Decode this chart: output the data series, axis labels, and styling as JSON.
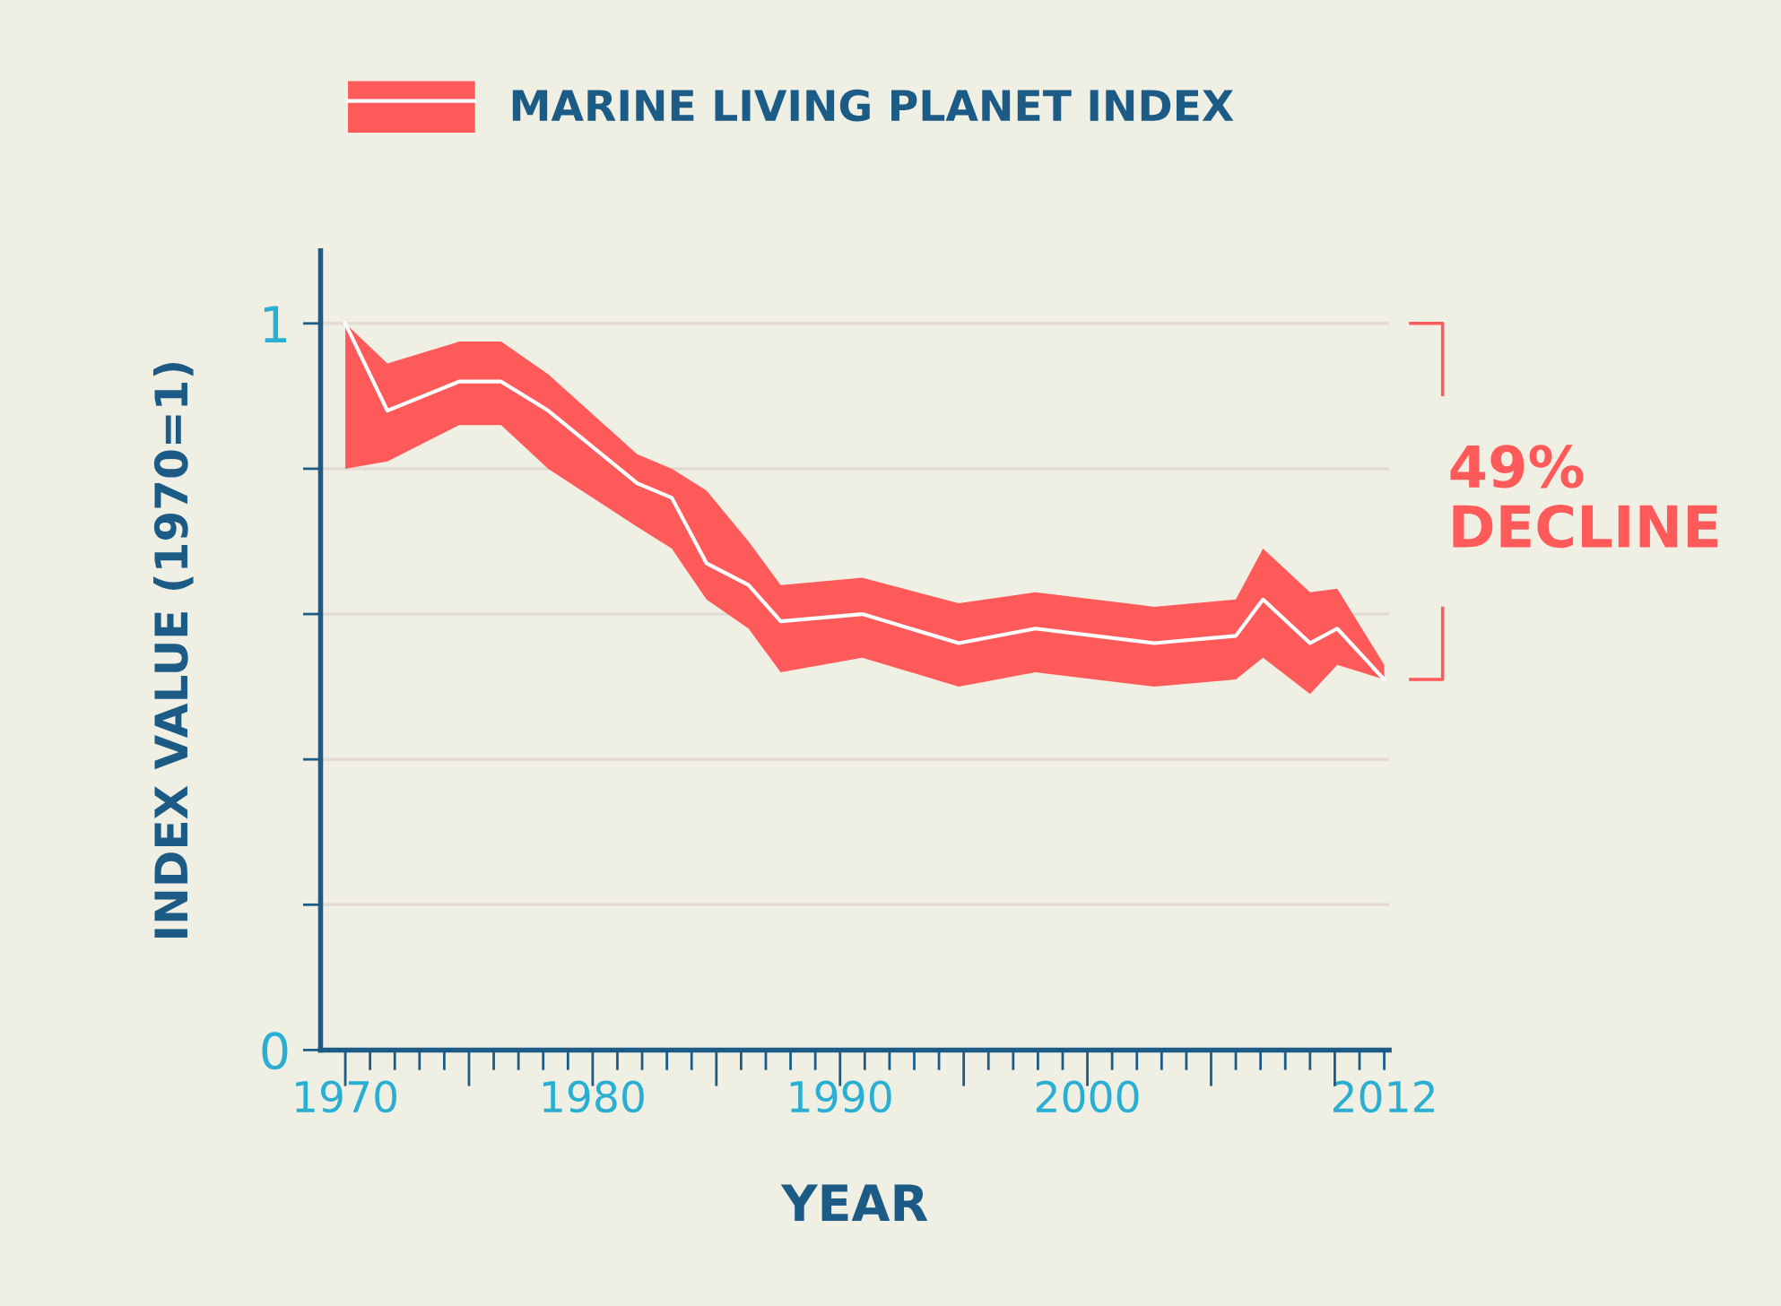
{
  "chart_data": {
    "type": "line",
    "xlabel": "YEAR",
    "ylabel": "INDEX VALUE (1970=1)",
    "series": [
      {
        "name": "MARINE LIVING PLANET INDEX",
        "color": "#ffffff",
        "x": [
          1970,
          1971.7,
          1974.6,
          1976.3,
          1978.2,
          1981.8,
          1983.2,
          1984.6,
          1986.3,
          1987.6,
          1990.9,
          1994.8,
          1997.9,
          2002.7,
          2006.0,
          2007.1,
          2009.0,
          2010.1,
          2012
        ],
        "values": [
          1.0,
          0.88,
          0.92,
          0.92,
          0.88,
          0.78,
          0.76,
          0.67,
          0.64,
          0.59,
          0.6,
          0.56,
          0.58,
          0.56,
          0.57,
          0.62,
          0.56,
          0.58,
          0.51
        ],
        "lower": [
          0.8,
          0.81,
          0.86,
          0.86,
          0.8,
          0.72,
          0.69,
          0.62,
          0.58,
          0.52,
          0.54,
          0.5,
          0.52,
          0.5,
          0.51,
          0.54,
          0.49,
          0.53,
          0.51
        ],
        "upper": [
          1.0,
          0.945,
          0.975,
          0.975,
          0.93,
          0.82,
          0.8,
          0.77,
          0.7,
          0.64,
          0.65,
          0.615,
          0.63,
          0.61,
          0.62,
          0.69,
          0.63,
          0.635,
          0.53
        ]
      }
    ],
    "xlim": [
      1969,
      2012.2
    ],
    "ylim": [
      0,
      1.1
    ],
    "xticks": [
      1970,
      1980,
      1990,
      2000,
      2012
    ],
    "yticks": [
      {
        "value": 0,
        "label": "0"
      },
      {
        "value": 0.2,
        "label": null
      },
      {
        "value": 0.4,
        "label": null
      },
      {
        "value": 0.6,
        "label": null
      },
      {
        "value": 0.8,
        "label": null
      },
      {
        "value": 1,
        "label": "1"
      }
    ],
    "grid": "y",
    "legend": "top left",
    "marker": "none",
    "line_style": "solid",
    "annotations": [
      "49% DECLINE"
    ]
  }
}
